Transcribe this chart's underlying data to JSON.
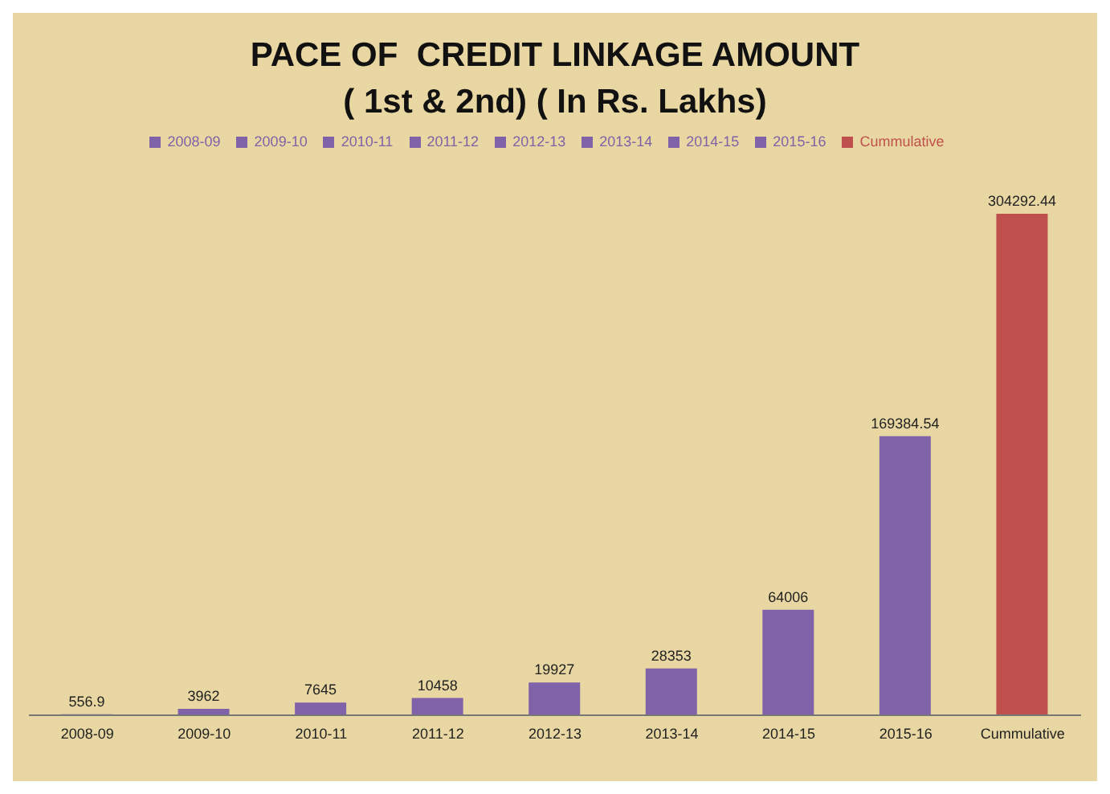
{
  "chart_data": {
    "type": "bar",
    "title": "PACE OF  CREDIT LINKAGE AMOUNT\n( 1st & 2nd) ( In Rs. Lakhs)",
    "categories": [
      "2008-09",
      "2009-10",
      "2010-11",
      "2011-12",
      "2012-13",
      "2013-14",
      "2014-15",
      "2015-16",
      "Cummulative"
    ],
    "stacked": true,
    "data_labels": true,
    "legend": "top",
    "grid": false,
    "tick_labels": "x",
    "series": [
      {
        "name": "2008-09",
        "color": "#7f62a8",
        "values": [
          556.9,
          null,
          null,
          null,
          null,
          null,
          null,
          null,
          null
        ]
      },
      {
        "name": "2009-10",
        "color": "#7f62a8",
        "values": [
          null,
          3962,
          null,
          null,
          null,
          null,
          null,
          null,
          null
        ]
      },
      {
        "name": "2010-11",
        "color": "#7f62a8",
        "values": [
          null,
          null,
          7645,
          null,
          null,
          null,
          null,
          null,
          null
        ]
      },
      {
        "name": "2011-12",
        "color": "#7f62a8",
        "values": [
          null,
          null,
          null,
          10458,
          null,
          null,
          null,
          null,
          null
        ]
      },
      {
        "name": "2012-13",
        "color": "#7f62a8",
        "values": [
          null,
          null,
          null,
          null,
          19927,
          null,
          null,
          null,
          null
        ]
      },
      {
        "name": "2013-14",
        "color": "#7f62a8",
        "values": [
          null,
          null,
          null,
          null,
          null,
          28353,
          null,
          null,
          null
        ]
      },
      {
        "name": "2014-15",
        "color": "#7f62a8",
        "values": [
          null,
          null,
          null,
          null,
          null,
          null,
          64006,
          null,
          null
        ]
      },
      {
        "name": "2015-16",
        "color": "#7f62a8",
        "values": [
          null,
          null,
          null,
          null,
          null,
          null,
          null,
          169384.54,
          null
        ]
      },
      {
        "name": "Cummulative",
        "color": "#c0504d",
        "values": [
          null,
          null,
          null,
          null,
          null,
          null,
          null,
          null,
          304292.44
        ]
      }
    ]
  }
}
